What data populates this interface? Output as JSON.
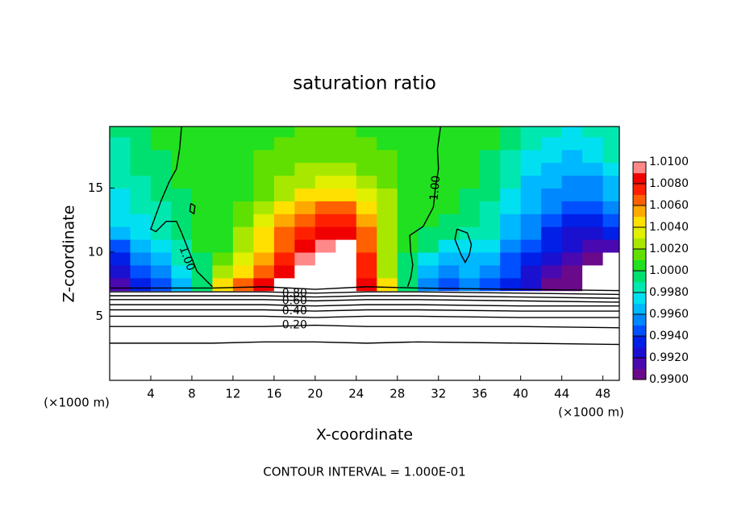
{
  "chart_data": {
    "type": "contour",
    "title": "saturation ratio",
    "x_label": "X-coordinate",
    "y_label": "Z-coordinate",
    "unit_label": "(×1000 m)",
    "note": "CONTOUR INTERVAL = 1.000E-01",
    "xlim": [
      0,
      49.6
    ],
    "ylim": [
      0,
      19.8
    ],
    "xticks": [
      4,
      8,
      12,
      16,
      20,
      24,
      28,
      32,
      36,
      40,
      44,
      48
    ],
    "yticks": [
      5,
      10,
      15
    ],
    "clim": [
      0.99,
      1.01
    ],
    "colors": [
      "#6a0a8a",
      "#4a08b0",
      "#1a10d0",
      "#0020e8",
      "#0050ff",
      "#0088ff",
      "#00b8ff",
      "#00e0f0",
      "#00e8b0",
      "#00e070",
      "#20e020",
      "#60e000",
      "#a8e800",
      "#e0f000",
      "#ffe000",
      "#ffa800",
      "#ff6000",
      "#ff2000",
      "#f00000",
      "#ff8888"
    ],
    "cticks": [
      {
        "value": 0.99,
        "label": "0.9900"
      },
      {
        "value": 0.992,
        "label": "0.9920"
      },
      {
        "value": 0.994,
        "label": "0.9940"
      },
      {
        "value": 0.996,
        "label": "0.9960"
      },
      {
        "value": 0.998,
        "label": "0.9980"
      },
      {
        "value": 1.0,
        "label": "1.0000"
      },
      {
        "value": 1.002,
        "label": "1.0020"
      },
      {
        "value": 1.004,
        "label": "1.0040"
      },
      {
        "value": 1.006,
        "label": "1.0060"
      },
      {
        "value": 1.008,
        "label": "1.0080"
      },
      {
        "value": 1.01,
        "label": "1.0100"
      }
    ],
    "heatmap": {
      "x": [
        1,
        3,
        5,
        7,
        9,
        11,
        13,
        15,
        17,
        19,
        21,
        23,
        25,
        27,
        29,
        31,
        33,
        35,
        37,
        39,
        41,
        43,
        45,
        47,
        49
      ],
      "z": [
        7.5,
        8.5,
        9.5,
        10.5,
        11.5,
        12.5,
        13.5,
        14.5,
        15.5,
        16.5,
        17.5,
        18.5,
        19.5
      ],
      "values": [
        [
          0.9915,
          0.993,
          0.994,
          0.996,
          0.999,
          1.004,
          1.0066,
          1.008,
          1.012,
          1.013,
          1.013,
          1.013,
          1.008,
          1.005,
          0.9994,
          0.995,
          0.9945,
          0.995,
          0.9945,
          0.9935,
          0.992,
          0.9905,
          0.99,
          0.988,
          0.987
        ],
        [
          0.9925,
          0.9945,
          0.9955,
          0.997,
          0.9995,
          1.002,
          1.0045,
          1.0068,
          1.0086,
          1.012,
          1.013,
          1.013,
          1.0074,
          1.003,
          0.9996,
          0.9962,
          0.9955,
          0.996,
          0.9955,
          0.994,
          0.9925,
          0.9912,
          0.9905,
          0.9895,
          0.988
        ],
        [
          0.9935,
          0.9955,
          0.9965,
          0.998,
          0.9998,
          1.0012,
          1.0032,
          1.0056,
          1.0078,
          1.0092,
          1.012,
          1.013,
          1.0072,
          1.0022,
          0.9998,
          0.9975,
          0.9965,
          0.9968,
          0.9965,
          0.9948,
          0.9932,
          0.992,
          0.9912,
          0.9905,
          0.9898
        ],
        [
          0.9945,
          0.9962,
          0.9975,
          0.9988,
          1.0,
          1.001,
          1.0026,
          1.0048,
          1.007,
          1.0086,
          1.0094,
          1.012,
          1.007,
          1.0026,
          1.0002,
          0.999,
          0.9978,
          0.9975,
          0.9972,
          0.9955,
          0.994,
          0.993,
          0.992,
          0.9915,
          0.991
        ],
        [
          0.996,
          0.9972,
          0.9982,
          0.9992,
          1.0001,
          1.0008,
          1.002,
          1.004,
          1.0062,
          1.0078,
          1.0086,
          1.0088,
          1.0066,
          1.0028,
          1.0004,
          0.9998,
          0.9992,
          0.9988,
          0.998,
          0.9962,
          0.995,
          0.9938,
          0.9928,
          0.9925,
          0.993
        ],
        [
          0.997,
          0.9978,
          0.9985,
          0.9994,
          1.0002,
          1.0007,
          1.0016,
          1.0032,
          1.0052,
          1.0068,
          1.0076,
          1.0074,
          1.0058,
          1.0028,
          1.0006,
          1.0,
          0.9998,
          0.9996,
          0.9985,
          0.9968,
          0.9956,
          0.9944,
          0.9935,
          0.9932,
          0.994
        ],
        [
          0.9975,
          0.9982,
          0.9988,
          0.9996,
          1.0002,
          1.0006,
          1.0012,
          1.0024,
          1.004,
          1.0056,
          1.0064,
          1.0062,
          1.0048,
          1.0026,
          1.0008,
          1.0002,
          1.0001,
          0.9997,
          0.9988,
          0.9972,
          0.996,
          0.995,
          0.9942,
          0.994,
          0.995
        ],
        [
          0.9978,
          0.9985,
          0.9992,
          0.9998,
          1.0003,
          1.0006,
          1.001,
          1.0018,
          1.003,
          1.0042,
          1.005,
          1.0048,
          1.0036,
          1.002,
          1.0009,
          1.0004,
          1.0002,
          0.9998,
          0.999,
          0.9976,
          0.9964,
          0.9955,
          0.995,
          0.995,
          0.996
        ],
        [
          0.998,
          0.9988,
          0.9994,
          1.0,
          1.0004,
          1.0006,
          1.0009,
          1.0014,
          1.0022,
          1.003,
          1.0036,
          1.0034,
          1.0026,
          1.0016,
          1.0009,
          1.0005,
          1.0003,
          1.0,
          0.9992,
          0.998,
          0.9968,
          0.996,
          0.9956,
          0.9958,
          0.9968
        ],
        [
          0.9982,
          0.999,
          0.9996,
          1.0002,
          1.0005,
          1.0007,
          1.0009,
          1.0012,
          1.0016,
          1.002,
          1.0024,
          1.0022,
          1.0018,
          1.0013,
          1.0009,
          1.0006,
          1.0004,
          1.0001,
          0.9995,
          0.9984,
          0.9972,
          0.9965,
          0.9962,
          0.9966,
          0.9975
        ],
        [
          0.9985,
          0.9992,
          0.9998,
          1.0003,
          1.0006,
          1.0008,
          1.0009,
          1.0011,
          1.0013,
          1.0015,
          1.0017,
          1.0016,
          1.0014,
          1.0011,
          1.0009,
          1.0007,
          1.0005,
          1.0003,
          0.9998,
          0.9988,
          0.9978,
          0.997,
          0.9968,
          0.9972,
          0.998
        ],
        [
          0.9988,
          0.9994,
          1.0,
          1.0004,
          1.0007,
          1.0008,
          1.0009,
          1.001,
          1.0012,
          1.0013,
          1.0014,
          1.0013,
          1.0012,
          1.001,
          1.0009,
          1.0008,
          1.0006,
          1.0004,
          1.0,
          0.9992,
          0.9982,
          0.9975,
          0.9972,
          0.9978,
          0.9985
        ],
        [
          0.999,
          0.9995,
          1.0,
          1.0003,
          1.0006,
          1.0007,
          1.0008,
          1.0009,
          1.001,
          1.0011,
          1.0012,
          1.0011,
          1.001,
          1.0009,
          1.0008,
          1.0008,
          1.0006,
          1.0004,
          1.0002,
          0.9998,
          0.9988,
          0.998,
          0.9978,
          0.9982,
          0.9988
        ]
      ]
    },
    "contours": [
      {
        "level": 1.0,
        "label": "1.00",
        "x": [
          7,
          6.8,
          6.5,
          5.8,
          5.0,
          4.0,
          4.5,
          5.5,
          6.5,
          7.0,
          7.5,
          8.5,
          10.0
        ],
        "z": [
          19.8,
          18.0,
          16.5,
          15.5,
          14.0,
          11.8,
          11.6,
          12.4,
          12.4,
          11.5,
          10.5,
          8.5,
          7.3
        ]
      },
      {
        "level": 1.0,
        "x": [
          7.9,
          8.3,
          8.2,
          7.8,
          7.9
        ],
        "z": [
          13.8,
          13.6,
          13.0,
          13.2,
          13.8
        ]
      },
      {
        "level": 1.0,
        "label": "1.00",
        "x": [
          32.2,
          31.9,
          32.0,
          31.7,
          31.5,
          30.5,
          29.2,
          29.3,
          29.5,
          29.3,
          29.0
        ],
        "z": [
          19.8,
          18.0,
          16.5,
          15.0,
          13.5,
          12.0,
          11.3,
          10.0,
          9.0,
          8.0,
          7.3
        ]
      },
      {
        "level": 1.0,
        "x": [
          33.8,
          34.8,
          35.2,
          35.0,
          34.6,
          34.2,
          33.6,
          33.8
        ],
        "z": [
          11.8,
          11.5,
          10.6,
          9.8,
          9.2,
          9.8,
          11.0,
          11.8
        ]
      },
      {
        "level": 0.9,
        "x": [
          0,
          10,
          15,
          20,
          25,
          30,
          40,
          49.6
        ],
        "z": [
          7.2,
          7.2,
          7.3,
          7.1,
          7.3,
          7.2,
          7.1,
          7.0
        ]
      },
      {
        "level": 0.8,
        "label": "0.80",
        "x": [
          0,
          10,
          15,
          20,
          25,
          30,
          40,
          49.6
        ],
        "z": [
          6.9,
          6.9,
          6.9,
          6.8,
          6.9,
          6.9,
          6.8,
          6.7
        ]
      },
      {
        "level": 0.7,
        "x": [
          0,
          10,
          15,
          20,
          25,
          30,
          40,
          49.6
        ],
        "z": [
          6.6,
          6.6,
          6.6,
          6.5,
          6.6,
          6.6,
          6.5,
          6.4
        ]
      },
      {
        "level": 0.6,
        "label": "0.60",
        "x": [
          0,
          10,
          15,
          20,
          25,
          30,
          40,
          49.6
        ],
        "z": [
          6.3,
          6.3,
          6.3,
          6.2,
          6.3,
          6.3,
          6.2,
          6.1
        ]
      },
      {
        "level": 0.5,
        "x": [
          0,
          10,
          15,
          20,
          25,
          30,
          40,
          49.6
        ],
        "z": [
          5.9,
          5.9,
          5.9,
          5.8,
          5.9,
          5.9,
          5.8,
          5.8
        ]
      },
      {
        "level": 0.4,
        "label": "0.40",
        "x": [
          0,
          10,
          15,
          20,
          25,
          30,
          40,
          49.6
        ],
        "z": [
          5.5,
          5.5,
          5.5,
          5.4,
          5.5,
          5.5,
          5.4,
          5.4
        ]
      },
      {
        "level": 0.3,
        "x": [
          0,
          10,
          15,
          20,
          25,
          30,
          40,
          49.6
        ],
        "z": [
          5.0,
          5.0,
          5.0,
          4.9,
          5.0,
          5.0,
          4.9,
          4.9
        ]
      },
      {
        "level": 0.2,
        "label": "0.20",
        "x": [
          0,
          10,
          15,
          20,
          25,
          30,
          40,
          49.6
        ],
        "z": [
          4.2,
          4.2,
          4.2,
          4.3,
          4.2,
          4.2,
          4.2,
          4.1
        ]
      },
      {
        "level": 0.1,
        "x": [
          0,
          10,
          15,
          20,
          25,
          30,
          40,
          49.6
        ],
        "z": [
          2.9,
          2.9,
          3.0,
          3.0,
          2.9,
          3.0,
          2.9,
          2.8
        ]
      }
    ]
  }
}
